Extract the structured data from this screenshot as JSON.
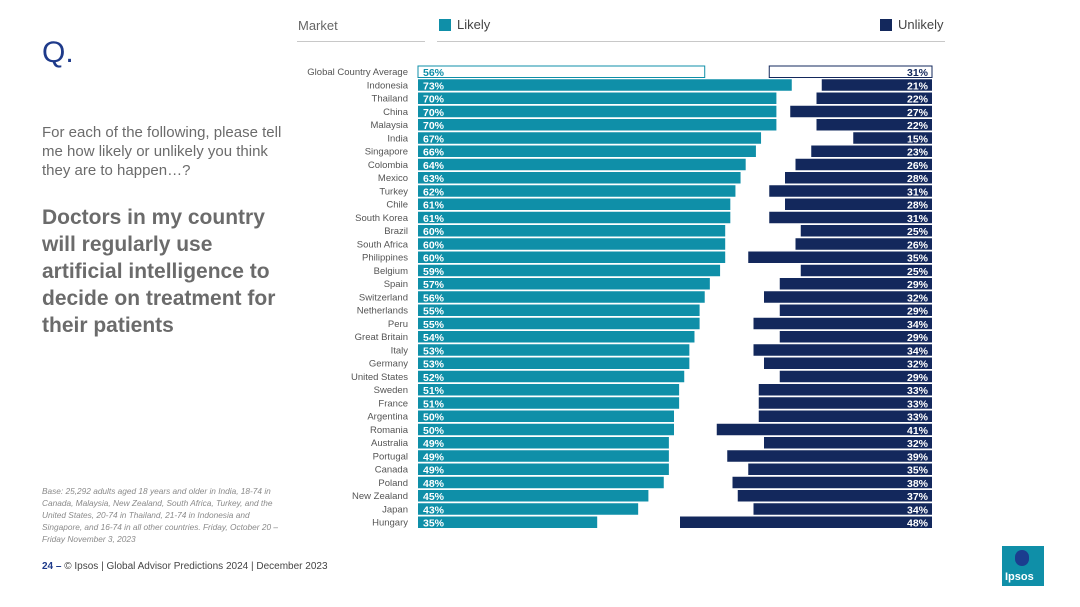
{
  "slide": {
    "q_mark": "Q.",
    "question": "For each of the following, please tell me how likely or unlikely you think they are to happen…?",
    "statement": "Doctors in my country will regularly use artificial intelligence to decide on treatment for their patients",
    "base_note": "Base: 25,292 adults aged 18 years and older in India, 18-74 in Canada, Malaysia, New Zealand, South Africa, Turkey, and the United States, 20-74 in Thailand, 21-74 in Indonesia and Singapore, and 16-74 in all other countries. Friday, October 20 – Friday November 3, 2023",
    "footer_page": "24 –",
    "footer_text": "© Ipsos | Global Advisor Predictions 2024 | December 2023",
    "logo_text": "Ipsos"
  },
  "header": {
    "market_label": "Market",
    "likely_label": "Likely",
    "unlikely_label": "Unlikely"
  },
  "colors": {
    "likely": "#0f8fa8",
    "unlikely": "#13285c",
    "outline_likely": "#0f8fa8",
    "outline_unlikely": "#13285c"
  },
  "chart_data": {
    "type": "bar",
    "title": "Doctors in my country will regularly use artificial intelligence to decide on treatment for their patients",
    "xlim": [
      0,
      100
    ],
    "categories": [
      "Global Country Average",
      "Indonesia",
      "Thailand",
      "China",
      "Malaysia",
      "India",
      "Singapore",
      "Colombia",
      "Mexico",
      "Turkey",
      "Chile",
      "South Korea",
      "Brazil",
      "South Africa",
      "Philippines",
      "Belgium",
      "Spain",
      "Switzerland",
      "Netherlands",
      "Peru",
      "Great Britain",
      "Italy",
      "Germany",
      "United States",
      "Sweden",
      "France",
      "Argentina",
      "Romania",
      "Australia",
      "Portugal",
      "Canada",
      "Poland",
      "New Zealand",
      "Japan",
      "Hungary"
    ],
    "series": [
      {
        "name": "Likely",
        "values": [
          56,
          73,
          70,
          70,
          70,
          67,
          66,
          64,
          63,
          62,
          61,
          61,
          60,
          60,
          60,
          59,
          57,
          56,
          55,
          55,
          54,
          53,
          53,
          52,
          51,
          51,
          50,
          50,
          49,
          49,
          49,
          48,
          45,
          43,
          35
        ]
      },
      {
        "name": "Unlikely",
        "values": [
          31,
          21,
          22,
          27,
          22,
          15,
          23,
          26,
          28,
          31,
          28,
          31,
          25,
          26,
          35,
          25,
          29,
          32,
          29,
          34,
          29,
          34,
          32,
          29,
          33,
          33,
          33,
          41,
          32,
          39,
          35,
          38,
          37,
          34,
          48
        ]
      }
    ],
    "likely_labels": [
      "56%",
      "73%",
      "70%",
      "70%",
      "70%",
      "67%",
      "66%",
      "64%",
      "63%",
      "62%",
      "61%",
      "61%",
      "60%",
      "60%",
      "60%",
      "59%",
      "57%",
      "56%",
      "55%",
      "55%",
      "54%",
      "53%",
      "53%",
      "52%",
      "51%",
      "51%",
      "50%",
      "50%",
      "49%",
      "49%",
      "49%",
      "48%",
      "45%",
      "43%",
      "35%"
    ],
    "unlikely_labels": [
      "31%",
      "21%",
      "22%",
      "27%",
      "22%",
      "15%",
      "23%",
      "26%",
      "28%",
      "31%",
      "28%",
      "31%",
      "25%",
      "26%",
      "35%",
      "25%",
      "29%",
      "32%",
      "29%",
      "34%",
      "29%",
      "34%",
      "32%",
      "29%",
      "33%",
      "33%",
      "33%",
      "41%",
      "32%",
      "39%",
      "35%",
      "38%",
      "37%",
      "34%",
      "48%"
    ]
  }
}
